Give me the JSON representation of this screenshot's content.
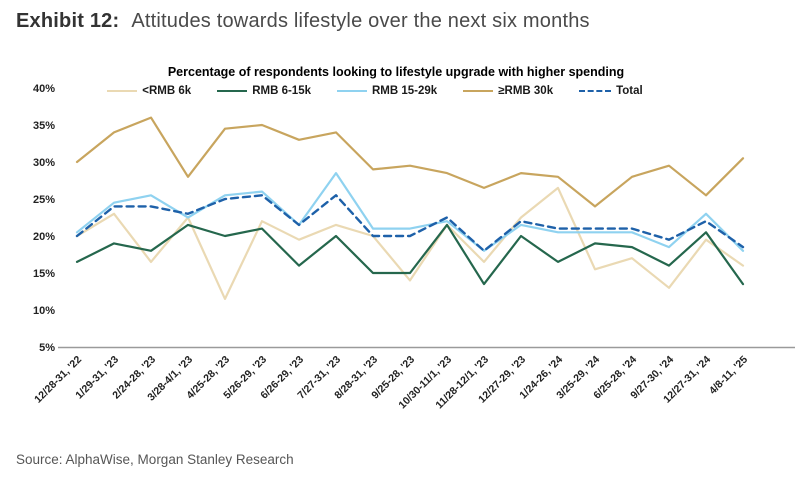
{
  "header": {
    "exhibit_label": "Exhibit 12:",
    "title": "Attitudes towards lifestyle over the next six months"
  },
  "footer": {
    "source": "Source: AlphaWise, Morgan Stanley Research"
  },
  "chart_data": {
    "type": "line",
    "title": "Percentage of respondents looking to lifestyle upgrade with higher spending",
    "categories": [
      "12/28-31, '22",
      "1/29-31, '23",
      "2/24-28, '23",
      "3/28-4/1, '23",
      "4/25-28, '23",
      "5/26-29, '23",
      "6/26-29, '23",
      "7/27-31, '23",
      "8/28-31, '23",
      "9/25-28, '23",
      "10/30-11/1, '23",
      "11/28-12/1, '23",
      "12/27-29, '23",
      "1/24-26, '24",
      "3/25-29, '24",
      "6/25-28, '24",
      "9/27-30, '24",
      "12/27-31, '24",
      "4/8-11, '25"
    ],
    "series": [
      {
        "name": "<RMB 6k",
        "color": "#ead9b3",
        "style": "solid",
        "values": [
          20,
          23,
          16.5,
          22.5,
          11.5,
          22,
          19.5,
          21.5,
          20,
          14,
          21.5,
          16.5,
          22.5,
          26.5,
          15.5,
          17,
          13,
          19.5,
          16
        ]
      },
      {
        "name": "RMB 6-15k",
        "color": "#25674d",
        "style": "solid",
        "values": [
          16.5,
          19,
          18,
          21.5,
          20,
          21,
          16,
          20,
          15,
          15,
          21.5,
          13.5,
          20,
          16.5,
          19,
          18.5,
          16,
          20.5,
          13.5
        ]
      },
      {
        "name": "RMB 15-29k",
        "color": "#8fd2f0",
        "style": "solid",
        "values": [
          20.5,
          24.5,
          25.5,
          22.5,
          25.5,
          26,
          21.5,
          28.5,
          21,
          21,
          22,
          18,
          21.5,
          20.5,
          20.5,
          20.5,
          18.5,
          23,
          18
        ]
      },
      {
        "name": "≥RMB 30k",
        "color": "#c8a55e",
        "style": "solid",
        "values": [
          30,
          34,
          36,
          28,
          34.5,
          35,
          33,
          34,
          29,
          29.5,
          28.5,
          26.5,
          28.5,
          28,
          24,
          28,
          29.5,
          25.5,
          30.5
        ]
      },
      {
        "name": "Total",
        "color": "#1e61a9",
        "style": "dashed",
        "values": [
          20,
          24,
          24,
          23,
          25,
          25.5,
          21.5,
          25.5,
          20,
          20,
          22.5,
          18,
          22,
          21,
          21,
          21,
          19.5,
          22,
          18.5
        ]
      }
    ],
    "y_axis": {
      "min": 5,
      "max": 40,
      "step": 5,
      "tick_suffix": "%"
    },
    "x_axis": {
      "label_rotation_deg": 45
    },
    "grid": false,
    "legend_position": "top",
    "ylim": [
      5,
      40
    ]
  }
}
